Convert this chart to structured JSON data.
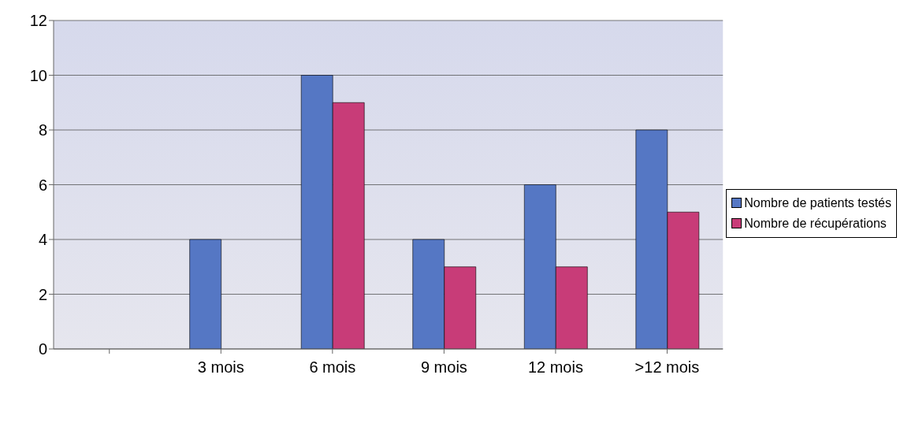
{
  "chart_data": {
    "type": "bar",
    "categories": [
      null,
      "3 mois",
      "6 mois",
      "9 mois",
      "12 mois",
      ">12 mois"
    ],
    "series": [
      {
        "name": "Nombre de patients testés",
        "color": "#5577c4",
        "values": [
          null,
          4,
          10,
          4,
          6,
          8
        ]
      },
      {
        "name": "Nombre de récupérations",
        "color": "#c83c78",
        "values": [
          null,
          null,
          9,
          3,
          3,
          5
        ]
      }
    ],
    "ylim": [
      0,
      12
    ],
    "yticks": [
      0,
      2,
      4,
      6,
      8,
      10,
      12
    ],
    "grid": "y",
    "legend": "right"
  }
}
